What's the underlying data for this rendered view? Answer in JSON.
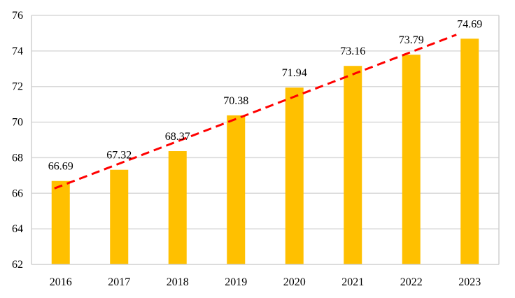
{
  "chart_data": {
    "type": "bar",
    "title": "",
    "xlabel": "",
    "ylabel": "",
    "categories": [
      "2016",
      "2017",
      "2018",
      "2019",
      "2020",
      "2021",
      "2022",
      "2023"
    ],
    "series": [
      {
        "name": "Value",
        "values": [
          66.69,
          67.32,
          68.37,
          70.38,
          71.94,
          73.16,
          73.79,
          74.69
        ],
        "color": "#FFC000"
      }
    ],
    "data_labels": [
      "66.69",
      "67.32",
      "68.37",
      "70.38",
      "71.94",
      "73.16",
      "73.79",
      "74.69"
    ],
    "trendline": {
      "type": "linear",
      "color": "#FF0000",
      "style": "dashed"
    },
    "ylim": [
      62,
      76
    ],
    "yticks": [
      62,
      64,
      66,
      68,
      70,
      72,
      74,
      76
    ],
    "ytick_labels": [
      "62",
      "64",
      "66",
      "68",
      "70",
      "72",
      "74",
      "76"
    ],
    "grid": true,
    "legend": "none"
  }
}
